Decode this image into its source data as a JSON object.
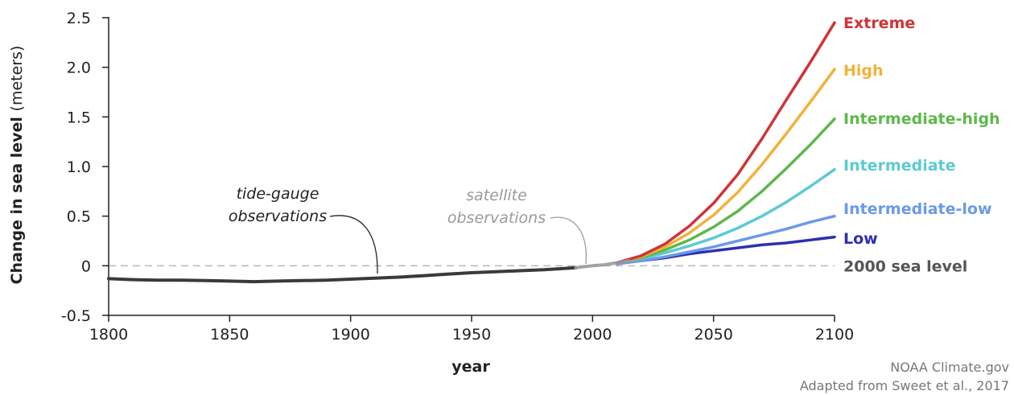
{
  "chart_data": {
    "type": "line",
    "title": "",
    "xlabel": "year",
    "ylabel": {
      "bold": "Change in sea level",
      "unit": "(meters)"
    },
    "xlim": [
      1800,
      2100
    ],
    "ylim": [
      -0.5,
      2.5
    ],
    "xticks": [
      "1800",
      "1850",
      "1900",
      "1950",
      "2000",
      "2050",
      "2100"
    ],
    "yticks": [
      "-0.5",
      "0",
      "0.5",
      "1.0",
      "1.5",
      "2.0",
      "2.5"
    ],
    "observations": [
      {
        "name": "tide-gauge observations",
        "color": "#3a3a3a",
        "x": [
          1800,
          1810,
          1820,
          1830,
          1840,
          1850,
          1860,
          1870,
          1880,
          1890,
          1900,
          1910,
          1920,
          1930,
          1940,
          1950,
          1960,
          1970,
          1980,
          1990,
          1993
        ],
        "y": [
          -0.13,
          -0.14,
          -0.145,
          -0.145,
          -0.15,
          -0.155,
          -0.16,
          -0.155,
          -0.15,
          -0.145,
          -0.135,
          -0.125,
          -0.115,
          -0.1,
          -0.085,
          -0.07,
          -0.06,
          -0.05,
          -0.04,
          -0.025,
          -0.02
        ]
      },
      {
        "name": "satellite observations",
        "color": "#9a9a9a",
        "x": [
          1993,
          2000,
          2005,
          2010,
          2015
        ],
        "y": [
          -0.02,
          0.0,
          0.01,
          0.03,
          0.05
        ]
      }
    ],
    "series": [
      {
        "name": "Extreme",
        "color": "#cf3438",
        "x": [
          2010,
          2020,
          2030,
          2040,
          2050,
          2060,
          2070,
          2080,
          2090,
          2100
        ],
        "y": [
          0.03,
          0.1,
          0.22,
          0.4,
          0.63,
          0.92,
          1.28,
          1.67,
          2.05,
          2.45
        ]
      },
      {
        "name": "High",
        "color": "#f2b13a",
        "x": [
          2010,
          2020,
          2030,
          2040,
          2050,
          2060,
          2070,
          2080,
          2090,
          2100
        ],
        "y": [
          0.03,
          0.09,
          0.19,
          0.33,
          0.51,
          0.74,
          1.02,
          1.33,
          1.65,
          1.98
        ]
      },
      {
        "name": "Intermediate-high",
        "color": "#5eb84a",
        "x": [
          2010,
          2020,
          2030,
          2040,
          2050,
          2060,
          2070,
          2080,
          2090,
          2100
        ],
        "y": [
          0.03,
          0.08,
          0.16,
          0.26,
          0.39,
          0.55,
          0.75,
          0.98,
          1.22,
          1.48
        ]
      },
      {
        "name": "Intermediate",
        "color": "#5ccad3",
        "x": [
          2010,
          2020,
          2030,
          2040,
          2050,
          2060,
          2070,
          2080,
          2090,
          2100
        ],
        "y": [
          0.03,
          0.07,
          0.13,
          0.2,
          0.28,
          0.38,
          0.5,
          0.64,
          0.8,
          0.97
        ]
      },
      {
        "name": "Intermediate-low",
        "color": "#6a9ae8",
        "x": [
          2010,
          2020,
          2030,
          2040,
          2050,
          2060,
          2070,
          2080,
          2090,
          2100
        ],
        "y": [
          0.02,
          0.05,
          0.09,
          0.14,
          0.19,
          0.25,
          0.31,
          0.37,
          0.44,
          0.5
        ]
      },
      {
        "name": "Low",
        "color": "#2d2fb3",
        "x": [
          2010,
          2020,
          2030,
          2040,
          2050,
          2060,
          2070,
          2080,
          2090,
          2100
        ],
        "y": [
          0.02,
          0.05,
          0.08,
          0.12,
          0.15,
          0.18,
          0.21,
          0.23,
          0.26,
          0.29
        ]
      }
    ],
    "reference_line": {
      "y": 0,
      "label": "2000 sea level",
      "color": "#b8b8b8",
      "label_color": "#555555"
    },
    "annotations": [
      {
        "lines": [
          "tide-gauge",
          "observations"
        ],
        "color": "#222222"
      },
      {
        "lines": [
          "satellite",
          "observations"
        ],
        "color": "#9a9a9a"
      }
    ],
    "credits": [
      "NOAA Climate.gov",
      "Adapted from Sweet et al., 2017"
    ],
    "grid": false,
    "legend": "labels at right end of lines"
  }
}
